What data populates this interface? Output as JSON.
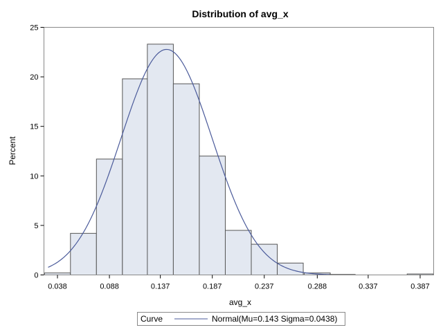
{
  "chart_data": {
    "type": "bar",
    "title": "Distribution of avg_x",
    "xlabel": "avg_x",
    "ylabel": "Percent",
    "xlim": [
      0.025,
      0.4
    ],
    "ylim": [
      0,
      25
    ],
    "xticks": [
      0.038,
      0.088,
      0.137,
      0.187,
      0.237,
      0.288,
      0.337,
      0.387
    ],
    "xtick_labels": [
      "0.038",
      "0.088",
      "0.137",
      "0.187",
      "0.237",
      "0.288",
      "0.337",
      "0.387"
    ],
    "yticks": [
      0,
      5,
      10,
      15,
      20,
      25
    ],
    "ytick_labels": [
      "0",
      "5",
      "10",
      "15",
      "20",
      "25"
    ],
    "bin_width": 0.025,
    "bins": [
      {
        "center": 0.038,
        "value": 0.2
      },
      {
        "center": 0.063,
        "value": 4.2
      },
      {
        "center": 0.088,
        "value": 11.7
      },
      {
        "center": 0.113,
        "value": 19.8
      },
      {
        "center": 0.137,
        "value": 23.3
      },
      {
        "center": 0.162,
        "value": 19.3
      },
      {
        "center": 0.187,
        "value": 12.0
      },
      {
        "center": 0.212,
        "value": 4.5
      },
      {
        "center": 0.237,
        "value": 3.1
      },
      {
        "center": 0.262,
        "value": 1.2
      },
      {
        "center": 0.288,
        "value": 0.2
      },
      {
        "center": 0.312,
        "value": 0.05
      },
      {
        "center": 0.337,
        "value": 0.0
      },
      {
        "center": 0.362,
        "value": 0.0
      },
      {
        "center": 0.387,
        "value": 0.1
      }
    ],
    "curve": {
      "type": "normal",
      "mu": 0.143,
      "sigma": 0.0438,
      "x_range": [
        0.029,
        0.3
      ],
      "color": "#4a5a9a"
    },
    "bar_fill": "#e3e8f1",
    "bar_stroke": "#555555",
    "legend": {
      "position": "bottom",
      "header": "Curve",
      "entries": [
        {
          "label": "Normal(Mu=0.143 Sigma=0.0438)",
          "color": "#4a5a9a"
        }
      ]
    },
    "grid": false
  }
}
